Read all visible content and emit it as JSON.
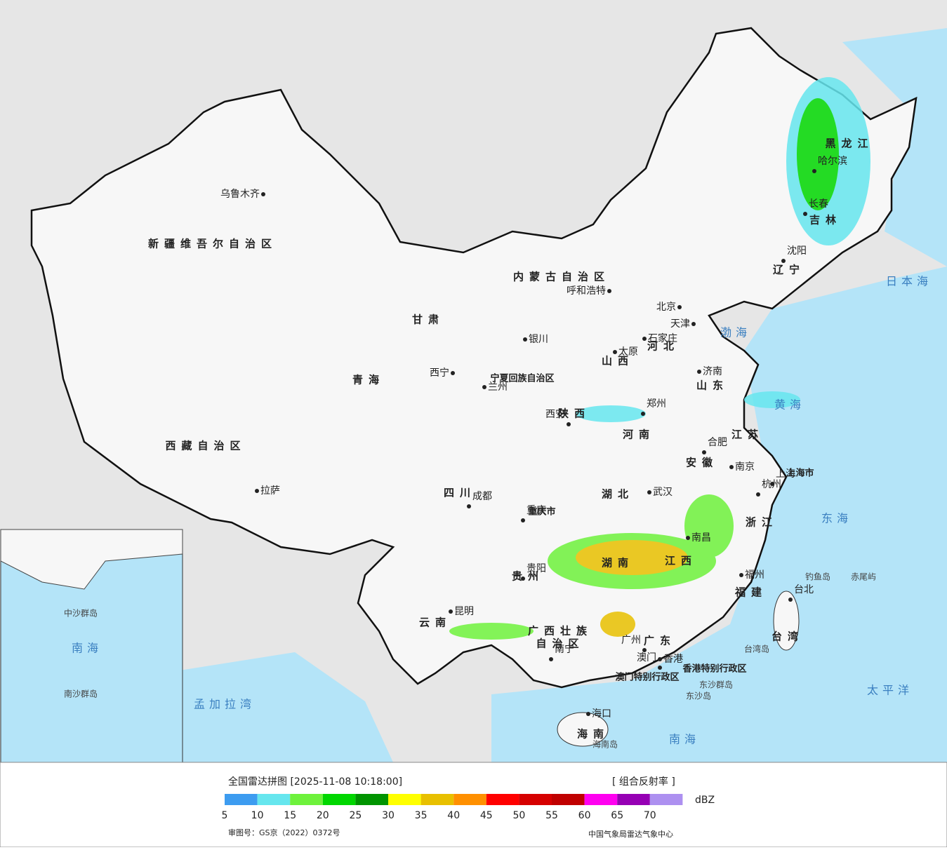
{
  "header": {
    "title": "全国雷达拼图 [2025-11-08 10:18:00]",
    "product": "[ 组合反射率 ]"
  },
  "legend": {
    "unit": "dBZ",
    "colors": [
      "#3d9cf0",
      "#66e6ee",
      "#6ef23c",
      "#00d700",
      "#009400",
      "#ffff00",
      "#e8c000",
      "#ff9000",
      "#ff0000",
      "#d60000",
      "#c00000",
      "#ff00f0",
      "#9600b4",
      "#ad90f0"
    ],
    "ticks": [
      5,
      10,
      15,
      20,
      25,
      30,
      35,
      40,
      45,
      50,
      55,
      60,
      65,
      70
    ]
  },
  "footer": {
    "approval": "审图号：GS京（2022）0372号",
    "agency": "中国气象局雷达气象中心"
  },
  "cities": [
    "乌鲁木齐",
    "拉萨",
    "西宁",
    "兰州",
    "银川",
    "呼和浩特",
    "北京",
    "天津",
    "石家庄",
    "太原",
    "济南",
    "西安",
    "郑州",
    "合肥",
    "南京",
    "上海",
    "杭州",
    "武汉",
    "成都",
    "重庆",
    "南昌",
    "福州",
    "贵阳",
    "昆明",
    "南宁",
    "广州",
    "澳门",
    "香港",
    "台北",
    "海口",
    "哈尔滨",
    "长春",
    "沈阳"
  ],
  "provinces": [
    "新疆维吾尔自治区",
    "西藏自治区",
    "青海",
    "甘肃",
    "内蒙古自治区",
    "四川",
    "云南",
    "陕西",
    "黑龙江",
    "吉林",
    "辽宁",
    "河北",
    "山西",
    "山东",
    "河南",
    "江苏",
    "安徽",
    "湖北",
    "浙江",
    "湖南",
    "江西",
    "福建",
    "贵州",
    "广西壮族",
    "自治区",
    "广东",
    "台湾",
    "海南",
    "重庆市",
    "上海市",
    "香港特别行政区",
    "澳门特别行政区",
    "宁夏回族自治区"
  ],
  "seas": [
    "日本海",
    "渤海",
    "黄海",
    "东海",
    "太平洋",
    "南海",
    "孟加拉湾",
    "台湾岛",
    "海南岛",
    "东沙群岛",
    "钓鱼岛",
    "赤尾屿",
    "南海",
    "中沙群岛",
    "南沙群岛",
    "东沙岛"
  ]
}
